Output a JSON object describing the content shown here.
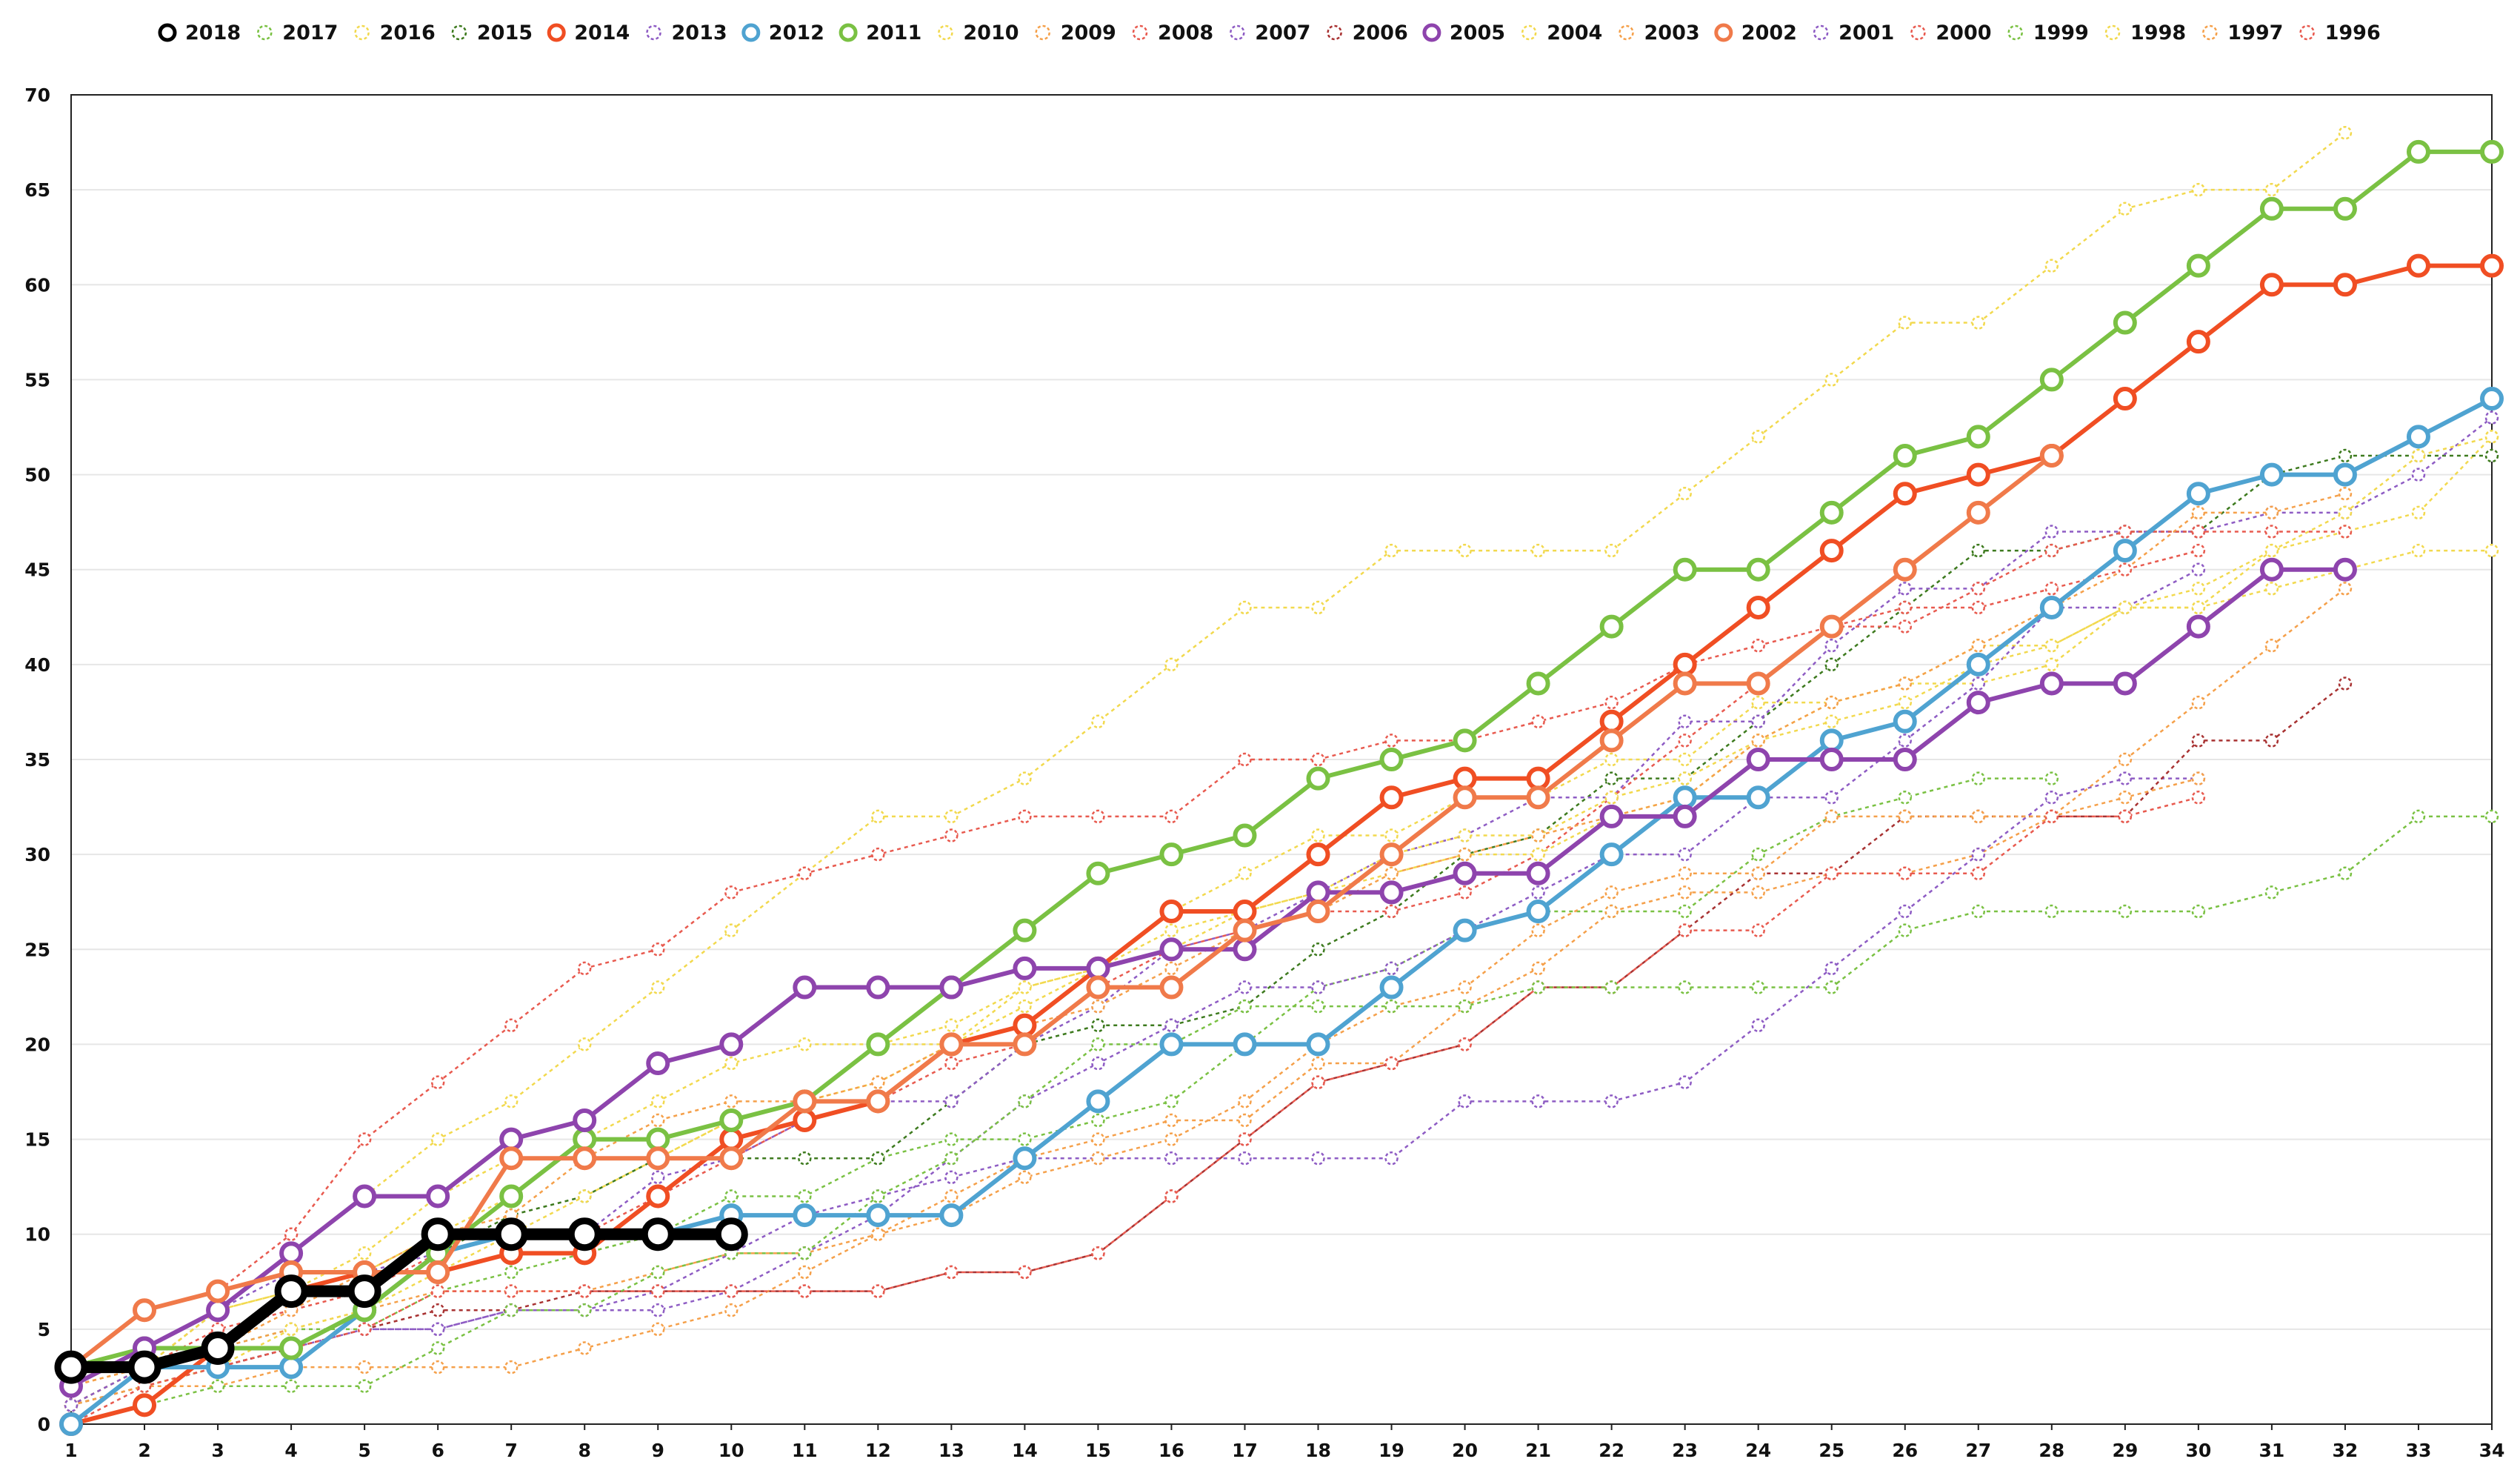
{
  "chart_data": {
    "type": "line",
    "title": "",
    "xlabel": "",
    "ylabel": "",
    "x_ticks": [
      "1",
      "2",
      "3",
      "4",
      "5",
      "6",
      "7",
      "8",
      "9",
      "10",
      "11",
      "12",
      "13",
      "14",
      "15",
      "16",
      "17",
      "18",
      "19",
      "20",
      "21",
      "22",
      "23",
      "24",
      "25",
      "26",
      "27",
      "28",
      "29",
      "30",
      "31",
      "32",
      "33",
      "34"
    ],
    "xlim": [
      1,
      34
    ],
    "ylim": [
      0,
      70
    ],
    "y_ticks": [
      "0",
      "5",
      "10",
      "15",
      "20",
      "25",
      "30",
      "35",
      "40",
      "45",
      "50",
      "55",
      "60",
      "65",
      "70"
    ],
    "grid": "horizontal",
    "legend_position": "top",
    "series": [
      {
        "name": "2018",
        "color": "#000000",
        "style": "bold",
        "values": [
          3,
          3,
          4,
          7,
          7,
          10,
          10,
          10,
          10,
          10
        ]
      },
      {
        "name": "2017",
        "color": "#7ac143",
        "style": "dotted",
        "values": [
          1,
          3,
          4,
          5,
          5,
          7,
          8,
          9,
          10,
          12,
          12,
          14,
          15,
          15,
          16,
          17,
          20,
          23,
          24,
          26,
          27,
          27,
          27,
          30,
          32,
          33,
          34,
          34
        ]
      },
      {
        "name": "2016",
        "color": "#f2d94e",
        "style": "dotted",
        "values": [
          2,
          4,
          6,
          7,
          9,
          12,
          14,
          14,
          14,
          16,
          17,
          20,
          20,
          23,
          24,
          27,
          29,
          31,
          31,
          33,
          33,
          35,
          35,
          38,
          38,
          39,
          39,
          40,
          43,
          43,
          46,
          47,
          48,
          52
        ]
      },
      {
        "name": "2015",
        "color": "#3d7a1e",
        "style": "dotted",
        "values": [
          1,
          2,
          3,
          4,
          6,
          9,
          11,
          12,
          14,
          14,
          14,
          14,
          17,
          20,
          21,
          21,
          22,
          25,
          27,
          30,
          31,
          34,
          34,
          37,
          40,
          43,
          46,
          46,
          47,
          47,
          50,
          51,
          51,
          51
        ]
      },
      {
        "name": "2014",
        "color": "#f04e23",
        "style": "bold",
        "values": [
          0,
          1,
          4,
          7,
          8,
          8,
          9,
          9,
          12,
          15,
          16,
          17,
          20,
          21,
          24,
          27,
          27,
          30,
          33,
          34,
          34,
          37,
          40,
          43,
          46,
          49,
          50,
          51,
          54,
          57,
          60,
          60,
          61,
          61
        ]
      },
      {
        "name": "2013",
        "color": "#8e5cc4",
        "style": "dotted",
        "values": [
          1,
          3,
          6,
          8,
          8,
          9,
          10,
          10,
          13,
          14,
          16,
          17,
          17,
          20,
          22,
          25,
          26,
          28,
          30,
          31,
          33,
          33,
          37,
          37,
          41,
          44,
          44,
          47,
          47,
          47,
          48,
          48,
          50,
          53
        ]
      },
      {
        "name": "2012",
        "color": "#4fa3d1",
        "style": "bold",
        "values": [
          0,
          3,
          3,
          3,
          6,
          9,
          10,
          10,
          10,
          11,
          11,
          11,
          11,
          14,
          17,
          20,
          20,
          20,
          23,
          26,
          27,
          30,
          33,
          33,
          36,
          37,
          40,
          43,
          46,
          49,
          50,
          50,
          52,
          54
        ]
      },
      {
        "name": "2011",
        "color": "#7ac143",
        "style": "bold",
        "values": [
          3,
          4,
          4,
          4,
          6,
          9,
          12,
          15,
          15,
          16,
          17,
          20,
          23,
          26,
          29,
          30,
          31,
          34,
          35,
          36,
          39,
          42,
          45,
          45,
          48,
          51,
          52,
          55,
          58,
          61,
          64,
          64,
          67,
          67
        ]
      },
      {
        "name": "2010",
        "color": "#f2d94e",
        "style": "dotted",
        "values": [
          1,
          3,
          6,
          9,
          12,
          15,
          17,
          20,
          23,
          26,
          29,
          32,
          32,
          34,
          37,
          40,
          43,
          43,
          46,
          46,
          46,
          46,
          49,
          52,
          55,
          58,
          58,
          61,
          64,
          65,
          65,
          68
        ]
      },
      {
        "name": "2009",
        "color": "#f5a04a",
        "style": "dotted",
        "values": [
          1,
          3,
          4,
          5,
          6,
          7,
          7,
          7,
          8,
          9,
          9,
          10,
          12,
          14,
          15,
          16,
          16,
          19,
          19,
          22,
          24,
          27,
          28,
          28,
          29,
          29,
          30,
          32,
          35,
          38,
          41,
          44
        ]
      },
      {
        "name": "2008",
        "color": "#e85a4f",
        "style": "dotted",
        "values": [
          2,
          3,
          5,
          6,
          7,
          9,
          10,
          10,
          12,
          14,
          16,
          17,
          19,
          20,
          23,
          25,
          26,
          27,
          27,
          28,
          30,
          33,
          36,
          39,
          42,
          42,
          44,
          46,
          47,
          47,
          47,
          47
        ]
      },
      {
        "name": "2007",
        "color": "#8e5cc4",
        "style": "dotted",
        "values": [
          1,
          2,
          3,
          4,
          5,
          5,
          6,
          6,
          7,
          9,
          11,
          12,
          13,
          14,
          14,
          14,
          14,
          14,
          14,
          17,
          17,
          17,
          18,
          21,
          24,
          27,
          30,
          33,
          34,
          34
        ]
      },
      {
        "name": "2006",
        "color": "#a83232",
        "style": "dotted",
        "values": [
          1,
          2,
          3,
          4,
          5,
          6,
          6,
          7,
          7,
          7,
          7,
          7,
          8,
          8,
          9,
          12,
          15,
          18,
          19,
          20,
          23,
          23,
          26,
          29,
          29,
          32,
          32,
          32,
          32,
          36,
          36,
          39
        ]
      },
      {
        "name": "2005",
        "color": "#8e44ad",
        "style": "bold",
        "values": [
          2,
          4,
          6,
          9,
          12,
          12,
          15,
          16,
          19,
          20,
          23,
          23,
          23,
          24,
          24,
          25,
          25,
          28,
          28,
          29,
          29,
          32,
          32,
          35,
          35,
          35,
          38,
          39,
          39,
          42,
          45,
          45
        ]
      },
      {
        "name": "2004",
        "color": "#f2d94e",
        "style": "dotted",
        "values": [
          1,
          2,
          3,
          5,
          6,
          8,
          10,
          12,
          14,
          16,
          17,
          18,
          20,
          22,
          24,
          26,
          27,
          28,
          30,
          31,
          31,
          33,
          34,
          36,
          38,
          39,
          41,
          41,
          43,
          44,
          46,
          48,
          51,
          52
        ]
      },
      {
        "name": "2003",
        "color": "#f5a04a",
        "style": "dotted",
        "values": [
          1,
          2,
          2,
          3,
          3,
          3,
          3,
          4,
          5,
          6,
          8,
          10,
          11,
          13,
          14,
          15,
          17,
          20,
          22,
          23,
          26,
          28,
          29,
          29,
          32,
          32,
          32,
          32,
          33,
          34
        ]
      },
      {
        "name": "2002",
        "color": "#f07a4a",
        "style": "bold",
        "values": [
          3,
          6,
          7,
          8,
          8,
          8,
          14,
          14,
          14,
          14,
          17,
          17,
          20,
          20,
          23,
          23,
          26,
          27,
          30,
          33,
          33,
          36,
          39,
          39,
          42,
          45,
          48,
          51
        ]
      },
      {
        "name": "2001",
        "color": "#8e5cc4",
        "style": "dotted",
        "values": [
          1,
          3,
          4,
          4,
          5,
          5,
          6,
          6,
          6,
          7,
          9,
          11,
          14,
          17,
          19,
          21,
          23,
          23,
          24,
          26,
          28,
          30,
          30,
          33,
          33,
          36,
          39,
          43,
          43,
          45
        ]
      },
      {
        "name": "2000",
        "color": "#e85a4f",
        "style": "dotted",
        "values": [
          0,
          2,
          3,
          4,
          5,
          7,
          7,
          7,
          7,
          7,
          7,
          7,
          8,
          8,
          9,
          12,
          15,
          18,
          19,
          20,
          23,
          23,
          26,
          26,
          29,
          29,
          29,
          32,
          32,
          33
        ]
      },
      {
        "name": "1999",
        "color": "#7ac143",
        "style": "dotted",
        "values": [
          0,
          1,
          2,
          2,
          2,
          4,
          6,
          6,
          8,
          9,
          9,
          12,
          14,
          17,
          20,
          20,
          22,
          22,
          22,
          22,
          23,
          23,
          23,
          23,
          23,
          26,
          27,
          27,
          27,
          27,
          28,
          29,
          32,
          32
        ]
      },
      {
        "name": "1998",
        "color": "#f2d94e",
        "style": "dotted",
        "values": [
          2,
          3,
          6,
          7,
          8,
          10,
          12,
          15,
          17,
          19,
          20,
          20,
          21,
          23,
          24,
          25,
          27,
          28,
          29,
          30,
          30,
          32,
          33,
          36,
          37,
          38,
          40,
          41,
          43,
          43,
          44,
          45,
          46,
          46
        ]
      },
      {
        "name": "1997",
        "color": "#f5a04a",
        "style": "dotted",
        "values": [
          2,
          3,
          4,
          6,
          8,
          10,
          11,
          14,
          16,
          17,
          17,
          18,
          20,
          21,
          22,
          24,
          26,
          27,
          29,
          30,
          31,
          32,
          33,
          36,
          38,
          39,
          41,
          43,
          45,
          48,
          48,
          49
        ]
      },
      {
        "name": "1996",
        "color": "#e85a4f",
        "style": "dotted",
        "values": [
          3,
          6,
          7,
          10,
          15,
          18,
          21,
          24,
          25,
          28,
          29,
          30,
          31,
          32,
          32,
          32,
          35,
          35,
          36,
          36,
          37,
          38,
          40,
          41,
          42,
          43,
          43,
          44,
          45,
          46
        ]
      }
    ]
  }
}
